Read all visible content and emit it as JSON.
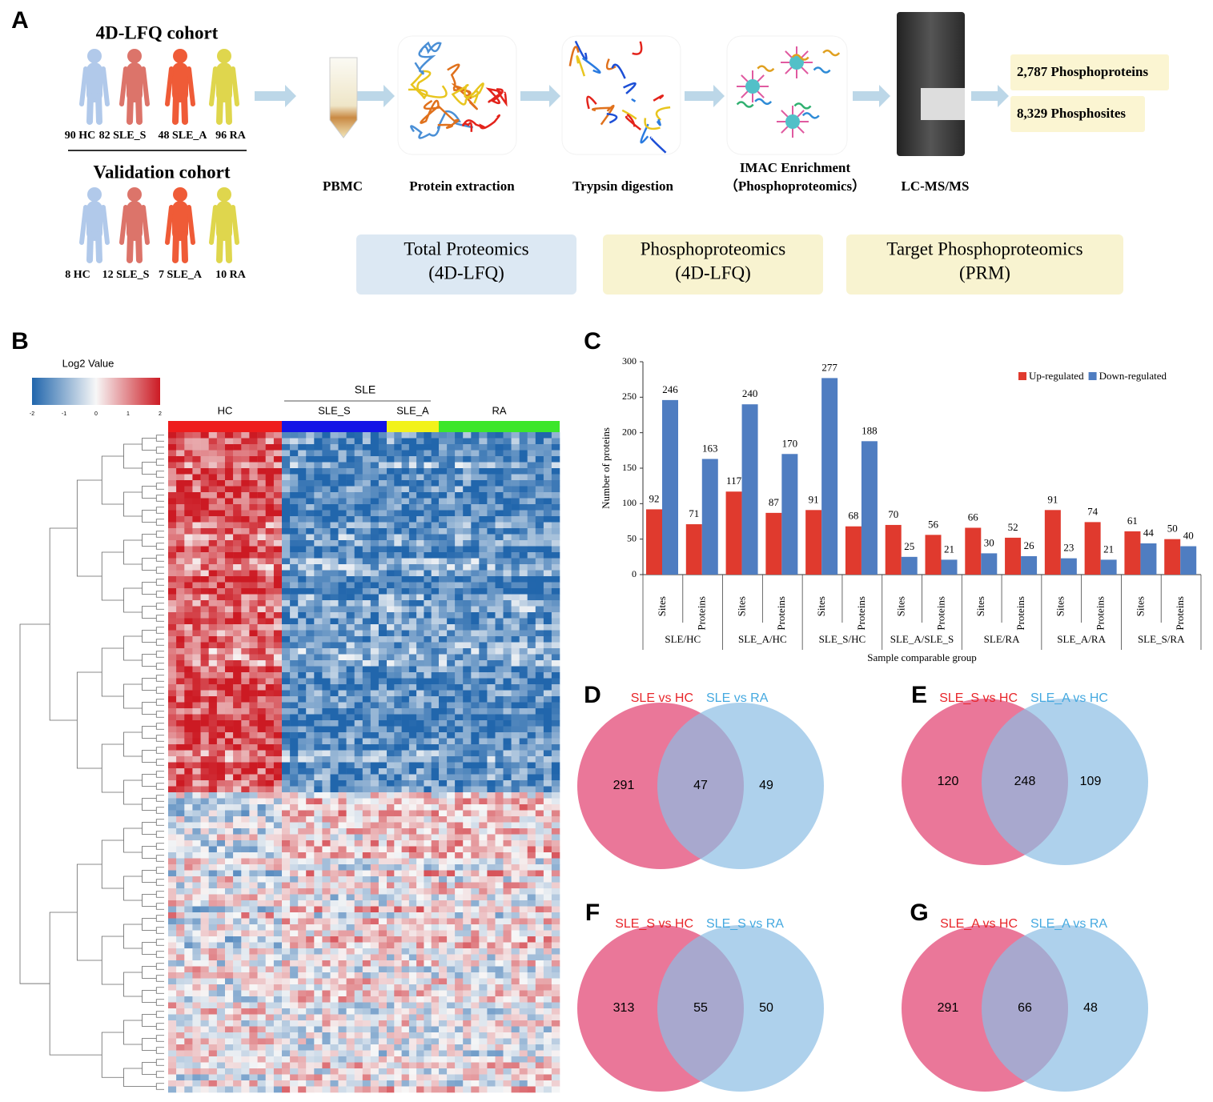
{
  "panels": [
    "A",
    "B",
    "C",
    "D",
    "E",
    "F",
    "G"
  ],
  "workflow": {
    "cohorts": [
      {
        "title": "4D-LFQ cohort",
        "groups": [
          "90 HC",
          "82 SLE_S",
          "48 SLE_A",
          "96 RA"
        ]
      },
      {
        "title": "Validation cohort",
        "groups": [
          "8 HC",
          "12 SLE_S",
          "7 SLE_A",
          "10 RA"
        ]
      }
    ],
    "steps": [
      [
        "PBMC"
      ],
      [
        "Protein extraction"
      ],
      [
        "Trypsin digestion"
      ],
      [
        "IMAC  Enrichment",
        "（Phosphoproteomics）"
      ],
      [
        "LC-MS/MS"
      ]
    ],
    "results": [
      "2,787 Phosphoproteins",
      "8,329 Phosphosites"
    ],
    "methods": [
      [
        "Total Proteomics",
        "(4D-LFQ)"
      ],
      [
        "Phosphoproteomics",
        "(4D-LFQ)"
      ],
      [
        "Target Phosphoproteomics",
        "(PRM)"
      ]
    ]
  },
  "heatmap": {
    "legend_title": "Log2 Value",
    "legend_ticks": [
      -2,
      -1,
      0,
      1,
      2
    ],
    "supergroup": "SLE",
    "groups": [
      "HC",
      "SLE_S",
      "SLE_A",
      "RA"
    ]
  },
  "chart_data": {
    "type": "bar",
    "ylabel": "Number of proteins",
    "xlabel": "Sample comparable group",
    "groups": [
      "SLE/HC",
      "SLE_A/HC",
      "SLE_S/HC",
      "SLE_A/SLE_S",
      "SLE/RA",
      "SLE_A/RA",
      "SLE_S/RA"
    ],
    "categories": [
      "Sites",
      "Proteins",
      "Sites",
      "Proteins",
      "Sites",
      "Proteins",
      "Sites",
      "Proteins",
      "Sites",
      "Proteins",
      "Sites",
      "Proteins",
      "Sites",
      "Proteins"
    ],
    "series": [
      {
        "name": "Up-regulated",
        "color": "#e03a2e",
        "values": [
          92,
          71,
          117,
          87,
          91,
          68,
          70,
          56,
          66,
          52,
          91,
          74,
          61,
          50
        ]
      },
      {
        "name": "Down-regulated",
        "color": "#4f7dc1",
        "values": [
          246,
          163,
          240,
          170,
          277,
          188,
          25,
          21,
          30,
          26,
          23,
          21,
          44,
          40
        ]
      }
    ],
    "ylim": [
      0,
      300
    ],
    "yticks": [
      0,
      50,
      100,
      150,
      200,
      250,
      300
    ],
    "legend": "top-right"
  },
  "venns": [
    {
      "sets": [
        "SLE vs HC",
        "SLE vs RA"
      ],
      "values": [
        291,
        47,
        49
      ]
    },
    {
      "sets": [
        "SLE_S vs HC",
        "SLE_A vs HC"
      ],
      "values": [
        120,
        248,
        109
      ]
    },
    {
      "sets": [
        "SLE_S vs HC",
        "SLE_S vs RA"
      ],
      "values": [
        313,
        55,
        50
      ]
    },
    {
      "sets": [
        "SLE_A vs HC",
        "SLE_A vs RA"
      ],
      "values": [
        291,
        66,
        48
      ]
    }
  ]
}
